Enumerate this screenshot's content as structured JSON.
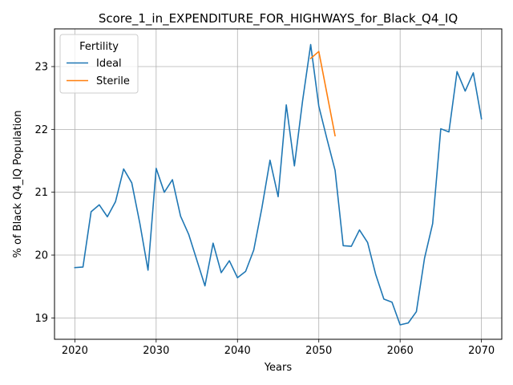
{
  "chart_data": {
    "type": "line",
    "title": "Score_1_in_EXPENDITURE_FOR_HIGHWAYS_for_Black_Q4_IQ",
    "xlabel": "Years",
    "ylabel": "% of Black Q4_IQ Population",
    "xlim": [
      2017.5,
      2072.5
    ],
    "ylim": [
      18.66,
      23.6
    ],
    "xticks": [
      2020,
      2030,
      2040,
      2050,
      2060,
      2070
    ],
    "yticks": [
      19,
      20,
      21,
      22,
      23
    ],
    "grid": true,
    "legend": {
      "title": "Fertility",
      "placement": "top-left"
    },
    "series": [
      {
        "name": "Ideal",
        "color": "#1f77b4",
        "x": [
          2020,
          2021,
          2022,
          2023,
          2024,
          2025,
          2026,
          2027,
          2028,
          2029,
          2030,
          2031,
          2032,
          2033,
          2034,
          2035,
          2036,
          2037,
          2038,
          2039,
          2040,
          2041,
          2042,
          2043,
          2044,
          2045,
          2046,
          2047,
          2048,
          2049,
          2050,
          2051,
          2052,
          2053,
          2054,
          2055,
          2056,
          2057,
          2058,
          2059,
          2060,
          2061,
          2062,
          2063,
          2064,
          2065,
          2066,
          2067,
          2068,
          2069,
          2070
        ],
        "y": [
          19.8,
          19.81,
          20.69,
          20.8,
          20.61,
          20.85,
          21.37,
          21.15,
          20.5,
          19.76,
          21.38,
          21.0,
          21.2,
          20.62,
          20.33,
          19.92,
          19.51,
          20.19,
          19.72,
          19.91,
          19.64,
          19.74,
          20.08,
          20.75,
          21.51,
          20.93,
          22.39,
          21.42,
          22.45,
          23.35,
          22.37,
          21.85,
          21.35,
          20.15,
          20.14,
          20.4,
          20.2,
          19.69,
          19.3,
          19.25,
          18.89,
          18.92,
          19.1,
          19.95,
          20.5,
          22.01,
          21.96,
          22.92,
          22.61,
          22.9,
          22.17
        ]
      },
      {
        "name": "Sterile",
        "color": "#ff7f0e",
        "x": [
          2049,
          2050,
          2051,
          2052
        ],
        "y": [
          23.13,
          23.24,
          22.57,
          21.9
        ]
      }
    ]
  }
}
